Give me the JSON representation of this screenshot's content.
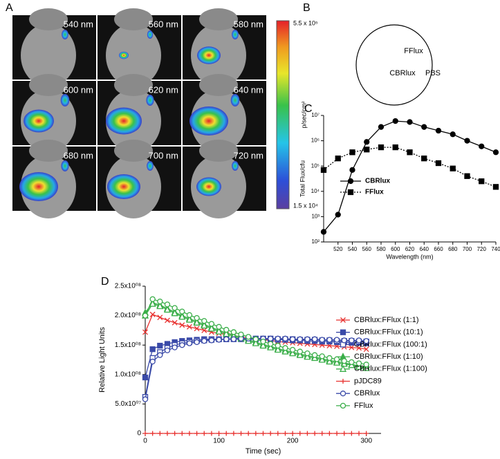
{
  "panel_labels": [
    "A",
    "B",
    "C",
    "D"
  ],
  "panel_a": {
    "wavelengths": [
      "540 nm",
      "560 nm",
      "580 nm",
      "600 nm",
      "620 nm",
      "640 nm",
      "680 nm",
      "700 nm",
      "720 nm"
    ],
    "colorbar": {
      "max_label": "5.5 x 10⁵",
      "min_label": "1.5 x 10⁴",
      "unit": "p/sec/cm²"
    }
  },
  "panel_b": {
    "labels": [
      "FFlux",
      "CBRlux",
      "PBS"
    ]
  },
  "chart_data": [
    {
      "type": "line",
      "x_label": "Wavelength (nm)",
      "y_label": "Total Flux/cfu",
      "log_y": true,
      "x": [
        500,
        520,
        540,
        560,
        580,
        600,
        620,
        640,
        660,
        680,
        700,
        720,
        740
      ],
      "xlim": [
        500,
        740
      ],
      "xticks": [
        520,
        540,
        560,
        580,
        600,
        620,
        640,
        660,
        680,
        700,
        720,
        740
      ],
      "ylim": [
        100,
        10000000
      ],
      "yticks": [
        {
          "value": 100,
          "label": "10²"
        },
        {
          "value": 1000,
          "label": "10³"
        },
        {
          "value": 10000,
          "label": "10⁴"
        },
        {
          "value": 100000,
          "label": "10⁵"
        },
        {
          "value": 1000000,
          "label": "10⁶"
        },
        {
          "value": 10000000,
          "label": "10⁷"
        }
      ],
      "series": [
        {
          "name": "CBRlux",
          "color": "#000000",
          "marker": "circle",
          "dashed": false,
          "values": [
            250,
            1200,
            70000,
            900000,
            3500000,
            6000000,
            5500000,
            3500000,
            2500000,
            1800000,
            1000000,
            600000,
            350000
          ]
        },
        {
          "name": "FFlux",
          "color": "#000000",
          "marker": "square",
          "dashed": true,
          "values": [
            70000,
            200000,
            350000,
            450000,
            550000,
            550000,
            350000,
            200000,
            130000,
            80000,
            40000,
            25000,
            15000
          ]
        }
      ]
    },
    {
      "type": "line",
      "x_label": "Time (sec)",
      "y_label": "Relative Light Units",
      "log_y": false,
      "x": [
        0,
        10,
        20,
        30,
        40,
        50,
        60,
        70,
        80,
        90,
        100,
        110,
        120,
        130,
        140,
        150,
        160,
        170,
        180,
        190,
        200,
        210,
        220,
        230,
        240,
        250,
        260,
        270,
        280,
        290,
        300
      ],
      "xlim": [
        0,
        320
      ],
      "xticks": [
        0,
        100,
        200,
        300
      ],
      "ylim": [
        0,
        250000000.0
      ],
      "yticks": [
        0,
        {
          "value": 50000000.0,
          "label": "5.0x10⁰⁷"
        },
        {
          "value": 100000000.0,
          "label": "1.0x10⁰⁸"
        },
        {
          "value": 150000000.0,
          "label": "1.5x10⁰⁸"
        },
        {
          "value": 200000000.0,
          "label": "2.0x10⁰⁸"
        },
        {
          "value": 250000000.0,
          "label": "2.5x10⁰⁸"
        }
      ],
      "series": [
        {
          "name": "CBRlux:FFlux (1:1)",
          "color": "#e8312f",
          "marker": "x",
          "values": [
            172000000.0,
            202000000.0,
            197000000.0,
            192000000.0,
            188000000.0,
            184000000.0,
            181000000.0,
            178000000.0,
            175000000.0,
            172000000.0,
            170000000.0,
            168000000.0,
            166000000.0,
            164000000.0,
            162000000.0,
            161000000.0,
            159000000.0,
            158000000.0,
            156000000.0,
            155000000.0,
            154000000.0,
            153000000.0,
            152000000.0,
            151000000.0,
            150000000.0,
            149000000.0,
            148000000.0,
            147000000.0,
            146000000.0,
            145000000.0,
            143000000.0
          ]
        },
        {
          "name": "CBRlux:FFlux (10:1)",
          "color": "#3a4aa8",
          "marker": "square",
          "values": [
            95000000.0,
            143000000.0,
            149000000.0,
            152000000.0,
            155000000.0,
            157000000.0,
            158000000.0,
            159000000.0,
            160000000.0,
            160000000.0,
            160000000.0,
            160000000.0,
            160000000.0,
            160000000.0,
            160000000.0,
            160000000.0,
            160000000.0,
            160000000.0,
            159000000.0,
            159000000.0,
            158000000.0,
            158000000.0,
            157000000.0,
            157000000.0,
            156000000.0,
            156000000.0,
            155000000.0,
            155000000.0,
            154000000.0,
            154000000.0,
            153000000.0
          ]
        },
        {
          "name": "CBRlux:FFlux (100:1)",
          "color": "#3a4aa8",
          "marker": "square-open",
          "values": [
            62000000.0,
            128000000.0,
            138000000.0,
            145000000.0,
            150000000.0,
            153000000.0,
            155000000.0,
            157000000.0,
            158000000.0,
            159000000.0,
            160000000.0,
            160000000.0,
            161000000.0,
            161000000.0,
            161000000.0,
            161000000.0,
            161000000.0,
            161000000.0,
            160000000.0,
            160000000.0,
            160000000.0,
            159000000.0,
            159000000.0,
            159000000.0,
            158000000.0,
            158000000.0,
            157000000.0,
            157000000.0,
            157000000.0,
            156000000.0,
            156000000.0
          ]
        },
        {
          "name": "CBRlux:FFlux (1:10)",
          "color": "#3aae49",
          "marker": "triangle",
          "values": [
            205000000.0,
            222000000.0,
            218000000.0,
            212000000.0,
            206000000.0,
            200000000.0,
            195000000.0,
            190000000.0,
            185000000.0,
            180000000.0,
            175000000.0,
            171000000.0,
            167000000.0,
            163000000.0,
            159000000.0,
            155000000.0,
            151000000.0,
            148000000.0,
            144000000.0,
            141000000.0,
            138000000.0,
            135000000.0,
            132000000.0,
            130000000.0,
            127000000.0,
            124000000.0,
            122000000.0,
            120000000.0,
            117000000.0,
            115000000.0,
            113000000.0
          ]
        },
        {
          "name": "CBRlux:FFlux (1:100)",
          "color": "#3aae49",
          "marker": "triangle-open",
          "values": [
            200000000.0,
            220000000.0,
            216000000.0,
            210000000.0,
            204000000.0,
            198000000.0,
            193000000.0,
            188000000.0,
            183000000.0,
            178000000.0,
            173000000.0,
            169000000.0,
            165000000.0,
            161000000.0,
            157000000.0,
            153000000.0,
            149000000.0,
            146000000.0,
            142000000.0,
            139000000.0,
            136000000.0,
            133000000.0,
            130000000.0,
            128000000.0,
            125000000.0,
            122000000.0,
            120000000.0,
            118000000.0,
            116000000.0,
            113000000.0,
            111000000.0
          ]
        },
        {
          "name": "pJDC89",
          "color": "#e8312f",
          "marker": "plus",
          "values": [
            0,
            0,
            0,
            0,
            0,
            0,
            0,
            0,
            0,
            0,
            0,
            0,
            0,
            0,
            0,
            0,
            0,
            0,
            0,
            0,
            0,
            0,
            0,
            0,
            0,
            0,
            0,
            0,
            0,
            0,
            0
          ]
        },
        {
          "name": "CBRlux",
          "color": "#3a4aa8",
          "marker": "circle-open",
          "values": [
            58000000.0,
            122000000.0,
            133000000.0,
            141000000.0,
            146000000.0,
            150000000.0,
            153000000.0,
            155000000.0,
            157000000.0,
            158000000.0,
            159000000.0,
            160000000.0,
            160000000.0,
            161000000.0,
            161000000.0,
            161000000.0,
            161000000.0,
            161000000.0,
            161000000.0,
            161000000.0,
            160000000.0,
            160000000.0,
            160000000.0,
            160000000.0,
            159000000.0,
            159000000.0,
            159000000.0,
            158000000.0,
            158000000.0,
            158000000.0,
            157000000.0
          ]
        },
        {
          "name": "FFlux",
          "color": "#3aae49",
          "marker": "circle-open",
          "values": [
            200000000.0,
            228000000.0,
            224000000.0,
            219000000.0,
            213000000.0,
            207000000.0,
            201000000.0,
            196000000.0,
            191000000.0,
            186000000.0,
            181000000.0,
            176000000.0,
            172000000.0,
            168000000.0,
            164000000.0,
            160000000.0,
            156000000.0,
            152000000.0,
            149000000.0,
            145000000.0,
            142000000.0,
            139000000.0,
            136000000.0,
            133000000.0,
            131000000.0,
            128000000.0,
            126000000.0,
            123000000.0,
            121000000.0,
            119000000.0,
            117000000.0
          ]
        }
      ]
    }
  ]
}
